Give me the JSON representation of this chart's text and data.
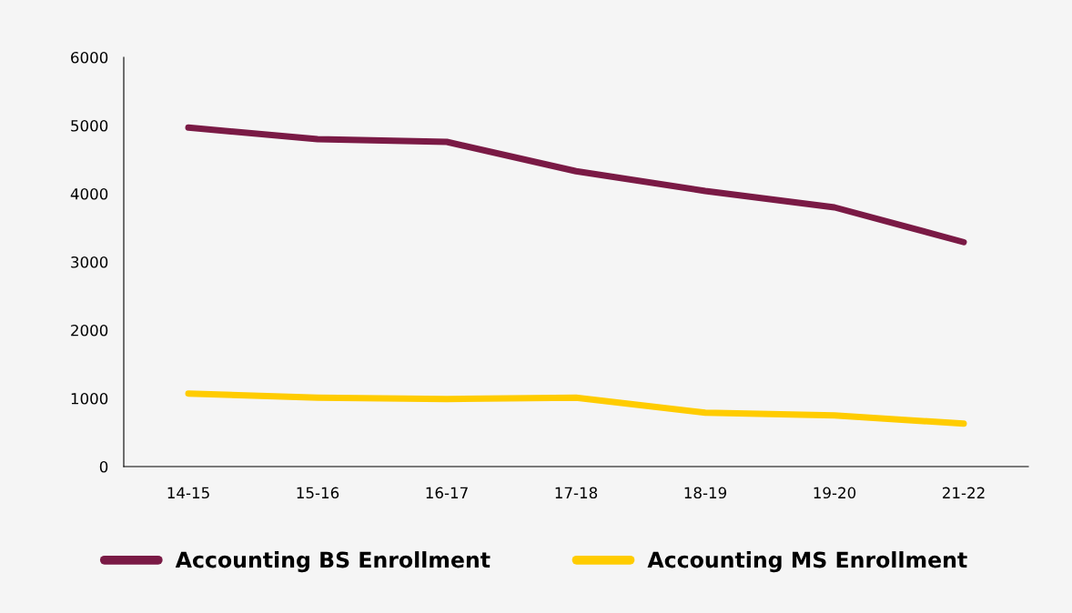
{
  "chart_data": {
    "type": "line",
    "categories": [
      "14-15",
      "15-16",
      "16-17",
      "17-18",
      "18-19",
      "19-20",
      "21-22"
    ],
    "series": [
      {
        "name": "Accounting BS Enrollment",
        "color": "#7a1a45",
        "values": [
          4970,
          4800,
          4760,
          4330,
          4040,
          3800,
          3290
        ]
      },
      {
        "name": "Accounting MS Enrollment",
        "color": "#ffcc00",
        "values": [
          1070,
          1010,
          990,
          1010,
          790,
          750,
          630
        ]
      }
    ],
    "ylim": [
      0,
      6000
    ],
    "yticks": [
      0,
      1000,
      2000,
      3000,
      4000,
      5000,
      6000
    ],
    "grid": false,
    "legend": "bottom",
    "marker": "none",
    "line_style": "solid"
  }
}
